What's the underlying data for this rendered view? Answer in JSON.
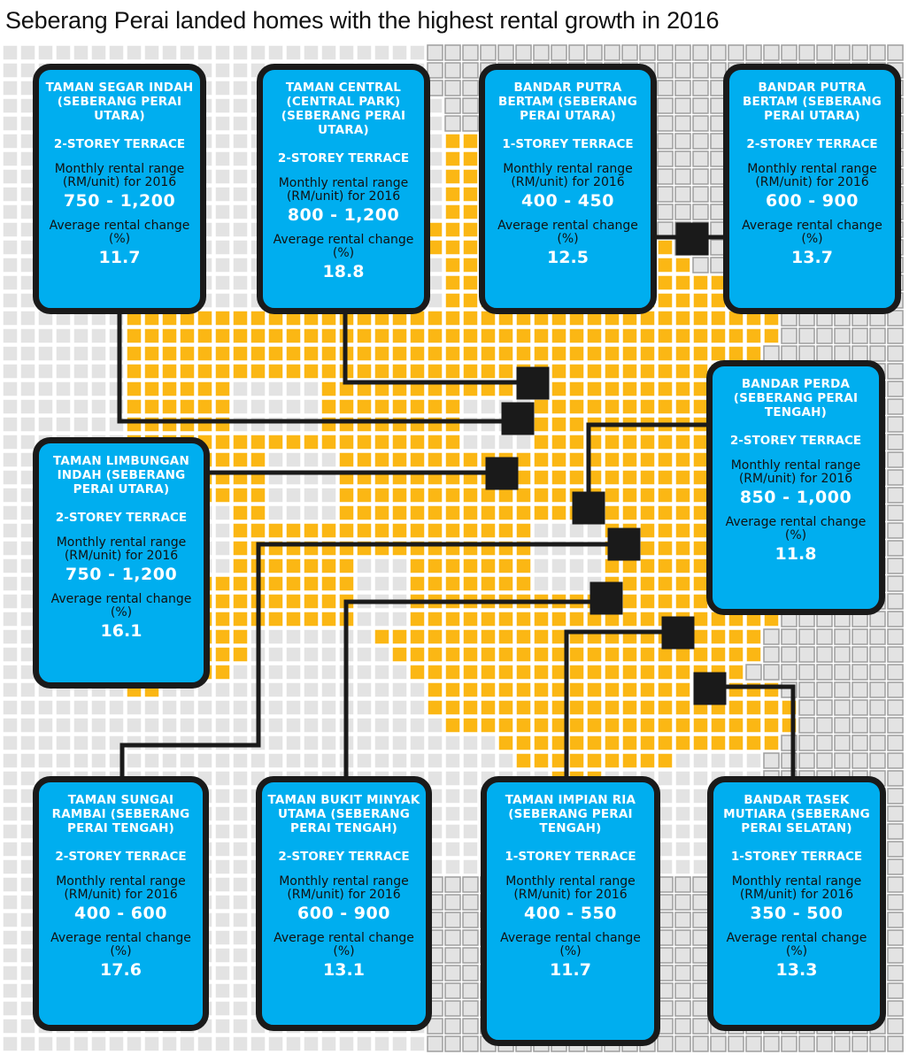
{
  "title": "Seberang Perai landed homes with the highest rental growth in 2016",
  "colors": {
    "map": "#fbb714",
    "card": "#00aeef",
    "border": "#1a1a1a",
    "grid_grey": "#bdbdbd",
    "grid_light": "#e3e3e3"
  },
  "labels": {
    "rent": "Monthly rental range (RM/unit) for 2016",
    "change": "Average rental change (%)"
  },
  "areas": [
    {
      "name": "TAMAN SEGAR INDAH (SEBERANG PERAI UTARA)",
      "type": "2-STOREY TERRACE",
      "rent": "750 - 1,200",
      "change": "11.7"
    },
    {
      "name": "TAMAN CENTRAL (CENTRAL PARK) (SEBERANG PERAI UTARA)",
      "type": "2-STOREY TERRACE",
      "rent": "800 - 1,200",
      "change": "18.8"
    },
    {
      "name": "BANDAR PUTRA BERTAM (SEBERANG PERAI UTARA)",
      "type": "1-STOREY TERRACE",
      "rent": "400 - 450",
      "change": "12.5"
    },
    {
      "name": "BANDAR PUTRA BERTAM (SEBERANG PERAI UTARA)",
      "type": "2-STOREY TERRACE",
      "rent": "600 - 900",
      "change": "13.7"
    },
    {
      "name": "BANDAR PERDA (SEBERANG PERAI TENGAH)",
      "type": "2-STOREY TERRACE",
      "rent": "850 - 1,000",
      "change": "11.8"
    },
    {
      "name": "TAMAN LIMBUNGAN INDAH (SEBERANG PERAI UTARA)",
      "type": "2-STOREY TERRACE",
      "rent": "750 - 1,200",
      "change": "16.1"
    },
    {
      "name": "TAMAN SUNGAI RAMBAI (SEBERANG PERAI TENGAH)",
      "type": "2-STOREY TERRACE",
      "rent": "400 - 600",
      "change": "17.6"
    },
    {
      "name": "TAMAN BUKIT MINYAK UTAMA (SEBERANG PERAI TENGAH)",
      "type": "2-STOREY TERRACE",
      "rent": "600 - 900",
      "change": "13.1"
    },
    {
      "name": "TAMAN IMPIAN RIA (SEBERANG PERAI TENGAH)",
      "type": "1-STOREY TERRACE",
      "rent": "400 - 550",
      "change": "11.7"
    },
    {
      "name": "BANDAR TASEK MUTIARA (SEBERANG PERAI SELATAN)",
      "type": "1-STOREY TERRACE",
      "rent": "350 - 500",
      "change": "13.3"
    }
  ]
}
